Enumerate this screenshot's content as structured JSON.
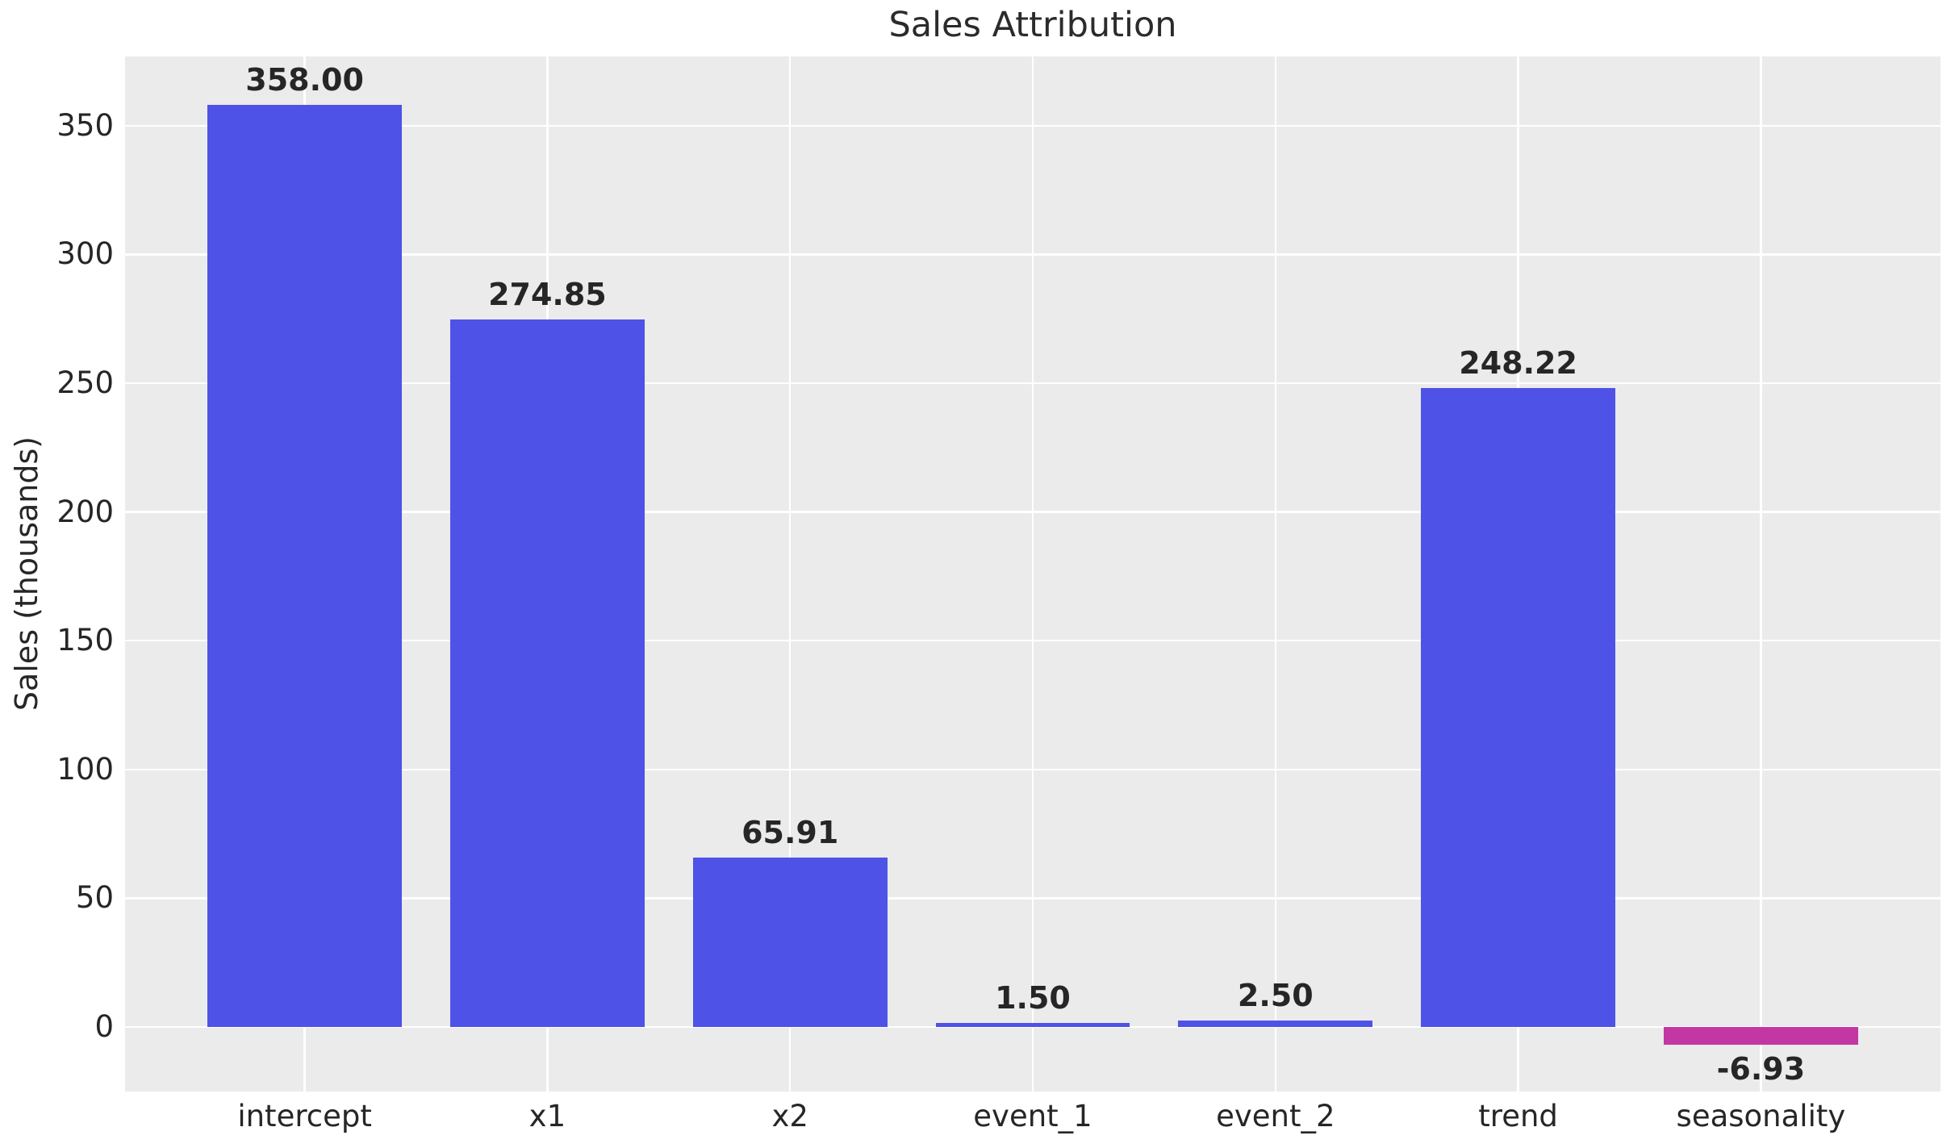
{
  "chart_data": {
    "type": "bar",
    "title": "Sales Attribution",
    "ylabel": "Sales (thousands)",
    "xlabel": "",
    "categories": [
      "intercept",
      "x1",
      "x2",
      "event_1",
      "event_2",
      "trend",
      "seasonality"
    ],
    "values": [
      358.0,
      274.85,
      65.91,
      1.5,
      2.5,
      248.22,
      -6.93
    ],
    "bar_labels": [
      "358.00",
      "274.85",
      "65.91",
      "1.50",
      "2.50",
      "248.22",
      "-6.93"
    ],
    "yticks": [
      0,
      50,
      100,
      150,
      200,
      250,
      300,
      350
    ],
    "ylim": [
      -25.1,
      376.9
    ],
    "grid": true,
    "legend": false,
    "style": {
      "bar_color_positive": "#4E52E6",
      "bar_color_negative": "#C437A3",
      "plot_background": "#EBEBEB",
      "grid_color": "#FFFFFF",
      "text_color": "#262626",
      "title_color": "#2b2b2b"
    }
  }
}
